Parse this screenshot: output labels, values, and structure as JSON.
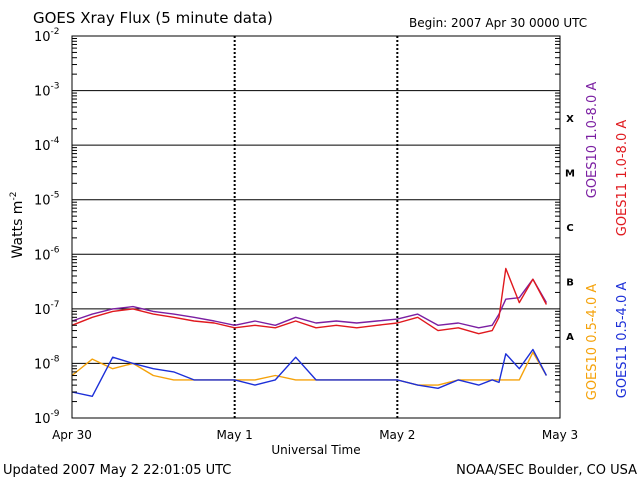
{
  "chart_data": {
    "type": "line",
    "title": "GOES Xray Flux (5 minute data)",
    "begin_label": "Begin:  2007 Apr 30 0000 UTC",
    "ylabel": "Watts m",
    "ylabel_superscript": "-2",
    "xlabel": "Universal Time",
    "y_scale": "log",
    "ylim": [
      1e-09,
      0.01
    ],
    "y_ticks": [
      {
        "exp": "-2",
        "value": 0.01
      },
      {
        "exp": "-3",
        "value": 0.001
      },
      {
        "exp": "-4",
        "value": 0.0001
      },
      {
        "exp": "-5",
        "value": 1e-05
      },
      {
        "exp": "-6",
        "value": 1e-06
      },
      {
        "exp": "-7",
        "value": 1e-07
      },
      {
        "exp": "-8",
        "value": 1e-08
      },
      {
        "exp": "-9",
        "value": 1e-09
      }
    ],
    "x_domain": [
      "2007-04-30",
      "2007-05-03"
    ],
    "x_ticks": [
      {
        "label": "Apr 30",
        "date": "2007-04-30"
      },
      {
        "label": "May 1",
        "date": "2007-05-01"
      },
      {
        "label": "May 2",
        "date": "2007-05-02"
      },
      {
        "label": "May 3",
        "date": "2007-05-03"
      }
    ],
    "flare_classes": [
      {
        "label": "X",
        "value": 0.0001
      },
      {
        "label": "M",
        "value": 1e-05
      },
      {
        "label": "C",
        "value": 1e-06
      },
      {
        "label": "B",
        "value": 1e-07
      },
      {
        "label": "A",
        "value": 1e-08
      }
    ],
    "grid": "horizontal lines at each decade from 1e-8 to 1e-3; dashed vertical day markers",
    "legend_placement": "right, vertical",
    "series": [
      {
        "name": "GOES10 1.0-8.0 A",
        "color": "#7b1fa2",
        "x": [
          "2007-04-30 00:00",
          "2007-04-30 03:00",
          "2007-04-30 06:00",
          "2007-04-30 09:00",
          "2007-04-30 12:00",
          "2007-04-30 15:00",
          "2007-04-30 18:00",
          "2007-04-30 21:00",
          "2007-05-01 00:00",
          "2007-05-01 03:00",
          "2007-05-01 06:00",
          "2007-05-01 09:00",
          "2007-05-01 12:00",
          "2007-05-01 15:00",
          "2007-05-01 18:00",
          "2007-05-01 21:00",
          "2007-05-02 00:00",
          "2007-05-02 03:00",
          "2007-05-02 06:00",
          "2007-05-02 09:00",
          "2007-05-02 12:00",
          "2007-05-02 14:00",
          "2007-05-02 15:00",
          "2007-05-02 16:00",
          "2007-05-02 18:00",
          "2007-05-02 20:00",
          "2007-05-02 22:00"
        ],
        "y": [
          6e-08,
          8e-08,
          1e-07,
          1.1e-07,
          9e-08,
          8e-08,
          7e-08,
          6e-08,
          5e-08,
          6e-08,
          5e-08,
          7e-08,
          5.5e-08,
          6e-08,
          5.5e-08,
          6e-08,
          6.5e-08,
          8e-08,
          5e-08,
          5.5e-08,
          4.5e-08,
          5e-08,
          8e-08,
          1.5e-07,
          1.6e-07,
          3.5e-07,
          1.3e-07
        ]
      },
      {
        "name": "GOES11 1.0-8.0 A",
        "color": "#e0191e",
        "x": [
          "2007-04-30 00:00",
          "2007-04-30 03:00",
          "2007-04-30 06:00",
          "2007-04-30 09:00",
          "2007-04-30 12:00",
          "2007-04-30 15:00",
          "2007-04-30 18:00",
          "2007-04-30 21:00",
          "2007-05-01 00:00",
          "2007-05-01 03:00",
          "2007-05-01 06:00",
          "2007-05-01 09:00",
          "2007-05-01 12:00",
          "2007-05-01 15:00",
          "2007-05-01 18:00",
          "2007-05-01 21:00",
          "2007-05-02 00:00",
          "2007-05-02 03:00",
          "2007-05-02 06:00",
          "2007-05-02 09:00",
          "2007-05-02 12:00",
          "2007-05-02 14:00",
          "2007-05-02 15:00",
          "2007-05-02 16:00",
          "2007-05-02 18:00",
          "2007-05-02 20:00",
          "2007-05-02 22:00"
        ],
        "y": [
          5e-08,
          7e-08,
          9e-08,
          1e-07,
          8e-08,
          7e-08,
          6e-08,
          5.5e-08,
          4.5e-08,
          5e-08,
          4.5e-08,
          6e-08,
          4.5e-08,
          5e-08,
          4.5e-08,
          5e-08,
          5.5e-08,
          7e-08,
          4e-08,
          4.5e-08,
          3.5e-08,
          4e-08,
          7e-08,
          5.5e-07,
          1.3e-07,
          3.5e-07,
          1.2e-07
        ]
      },
      {
        "name": "GOES10 0.5-4.0 A",
        "color": "#f5a20a",
        "x": [
          "2007-04-30 00:00",
          "2007-04-30 03:00",
          "2007-04-30 06:00",
          "2007-04-30 09:00",
          "2007-04-30 12:00",
          "2007-04-30 15:00",
          "2007-04-30 18:00",
          "2007-04-30 21:00",
          "2007-05-01 00:00",
          "2007-05-01 03:00",
          "2007-05-01 06:00",
          "2007-05-01 09:00",
          "2007-05-01 12:00",
          "2007-05-01 15:00",
          "2007-05-01 18:00",
          "2007-05-01 21:00",
          "2007-05-02 00:00",
          "2007-05-02 03:00",
          "2007-05-02 06:00",
          "2007-05-02 09:00",
          "2007-05-02 12:00",
          "2007-05-02 14:00",
          "2007-05-02 15:00",
          "2007-05-02 16:00",
          "2007-05-02 18:00",
          "2007-05-02 20:00",
          "2007-05-02 22:00"
        ],
        "y": [
          6e-09,
          1.2e-08,
          8e-09,
          1e-08,
          6e-09,
          5e-09,
          5e-09,
          5e-09,
          5e-09,
          5e-09,
          6e-09,
          5e-09,
          5e-09,
          5e-09,
          5e-09,
          5e-09,
          5e-09,
          4e-09,
          4e-09,
          5e-09,
          5e-09,
          5e-09,
          5e-09,
          5e-09,
          5e-09,
          1.6e-08,
          6e-09
        ]
      },
      {
        "name": "GOES11 0.5-4.0 A",
        "color": "#1c2fd8",
        "x": [
          "2007-04-30 00:00",
          "2007-04-30 03:00",
          "2007-04-30 06:00",
          "2007-04-30 09:00",
          "2007-04-30 12:00",
          "2007-04-30 15:00",
          "2007-04-30 18:00",
          "2007-04-30 21:00",
          "2007-05-01 00:00",
          "2007-05-01 03:00",
          "2007-05-01 06:00",
          "2007-05-01 09:00",
          "2007-05-01 12:00",
          "2007-05-01 15:00",
          "2007-05-01 18:00",
          "2007-05-01 21:00",
          "2007-05-02 00:00",
          "2007-05-02 03:00",
          "2007-05-02 06:00",
          "2007-05-02 09:00",
          "2007-05-02 12:00",
          "2007-05-02 14:00",
          "2007-05-02 15:00",
          "2007-05-02 16:00",
          "2007-05-02 18:00",
          "2007-05-02 20:00",
          "2007-05-02 22:00"
        ],
        "y": [
          3e-09,
          2.5e-09,
          1.3e-08,
          1e-08,
          8e-09,
          7e-09,
          5e-09,
          5e-09,
          5e-09,
          4e-09,
          5e-09,
          1.3e-08,
          5e-09,
          5e-09,
          5e-09,
          5e-09,
          5e-09,
          4e-09,
          3.5e-09,
          5e-09,
          4e-09,
          5e-09,
          4.5e-09,
          1.5e-08,
          8e-09,
          1.8e-08,
          6e-09
        ]
      }
    ]
  },
  "footer": {
    "updated": "Updated 2007 May  2 22:01:05 UTC",
    "source": "NOAA/SEC Boulder, CO USA"
  }
}
